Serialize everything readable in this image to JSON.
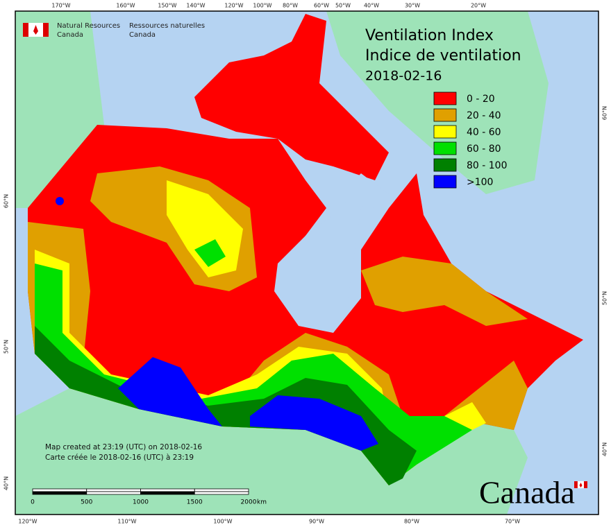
{
  "agency": {
    "en": [
      "Natural Resources",
      "Canada"
    ],
    "fr": [
      "Ressources naturelles",
      "Canada"
    ]
  },
  "title": [
    "Ventilation Index",
    "Indice de ventilation",
    "2018-02-16"
  ],
  "legend": [
    {
      "label": "0 - 20",
      "color": "#ff0000"
    },
    {
      "label": "20 - 40",
      "color": "#e0a000"
    },
    {
      "label": "40 - 60",
      "color": "#ffff00"
    },
    {
      "label": "60 - 80",
      "color": "#00e000"
    },
    {
      "label": "80 - 100",
      "color": "#008000"
    },
    {
      "label": ">100",
      "color": "#0000ff"
    }
  ],
  "graticule": {
    "top": [
      "170°W",
      "160°W",
      "150°W",
      "140°W",
      "120°W",
      "100°W",
      "80°W",
      "60°W",
      "50°W",
      "40°W",
      "30°W",
      "20°W"
    ],
    "bottom": [
      "120°W",
      "110°W",
      "100°W",
      "90°W",
      "80°W",
      "70°W"
    ],
    "left": [
      "60°N",
      "50°N",
      "40°N"
    ],
    "right": [
      "60°N",
      "50°N",
      "40°N"
    ]
  },
  "footnote": [
    "Map created at 23:19 (UTC) on 2018-02-16",
    "Carte créée le 2018-02-16 (UTC) à 23:19"
  ],
  "scale_bar": {
    "labels": [
      "0",
      "500",
      "1000",
      "1500",
      "2000"
    ],
    "unit": "km"
  },
  "wordmark": "Canada"
}
